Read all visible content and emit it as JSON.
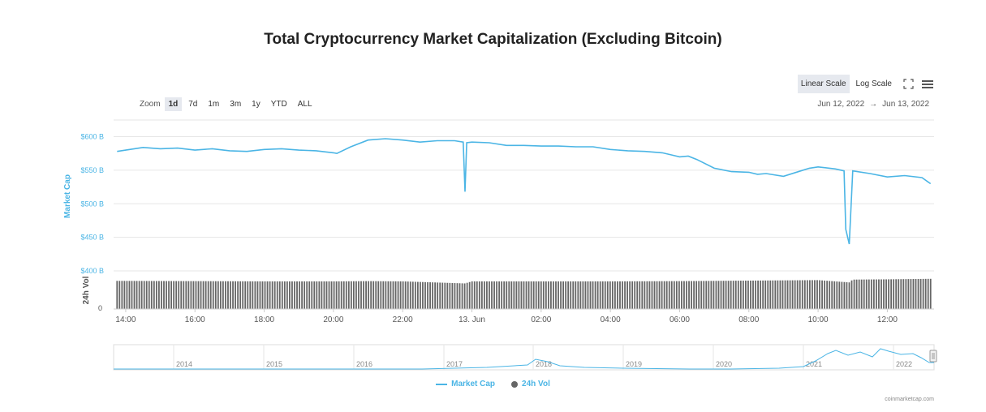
{
  "title": "Total Cryptocurrency Market Capitalization (Excluding Bitcoin)",
  "scale": {
    "linear_label": "Linear Scale",
    "log_label": "Log Scale",
    "active": "linear"
  },
  "zoom": {
    "label": "Zoom",
    "buttons": [
      "1d",
      "7d",
      "1m",
      "3m",
      "1y",
      "YTD",
      "ALL"
    ],
    "active": "1d"
  },
  "range": {
    "from": "Jun 12, 2022",
    "arrow": "→",
    "to": "Jun 13, 2022"
  },
  "legend": {
    "market_cap": "Market Cap",
    "volume": "24h Vol"
  },
  "credits": "coinmarketcap.com",
  "colors": {
    "market_cap": "#4bb5e5",
    "volume": "#666666",
    "axis_text": "#4bb5e5"
  },
  "icons": {
    "fullscreen": "fullscreen-icon",
    "menu": "hamburger-menu-icon"
  },
  "chart_data": {
    "type": "line",
    "title": "Total Cryptocurrency Market Capitalization (Excluding Bitcoin)",
    "xlabel": "",
    "ylabel": "Market Cap",
    "y2label": "24h Vol",
    "x_ticks": [
      "14:00",
      "16:00",
      "18:00",
      "20:00",
      "22:00",
      "13. Jun",
      "02:00",
      "04:00",
      "06:00",
      "08:00",
      "10:00",
      "12:00"
    ],
    "x_range_hours": [
      13.65,
      37.35
    ],
    "y_ticks": [
      "$600 B",
      "$550 B",
      "$500 B",
      "$450 B",
      "$400 B"
    ],
    "y_tick_values": [
      600,
      550,
      500,
      450,
      400
    ],
    "ylim": [
      400,
      620
    ],
    "vol_ticks": [
      "0"
    ],
    "grid": true,
    "legend_position": "bottom-center",
    "series": [
      {
        "name": "Market Cap",
        "unit": "billion USD",
        "x_hours": [
          13.75,
          14.0,
          14.5,
          15.0,
          15.5,
          16.0,
          16.5,
          17.0,
          17.5,
          18.0,
          18.5,
          19.0,
          19.5,
          20.0,
          20.1,
          20.5,
          21.0,
          21.5,
          22.0,
          22.5,
          23.0,
          23.5,
          23.75,
          23.8,
          23.85,
          24.0,
          24.5,
          25.0,
          25.5,
          26.0,
          26.5,
          27.0,
          27.5,
          28.0,
          28.5,
          29.0,
          29.5,
          29.75,
          30.0,
          30.25,
          30.5,
          31.0,
          31.5,
          32.0,
          32.25,
          32.5,
          33.0,
          33.5,
          33.75,
          34.0,
          34.5,
          34.75,
          34.8,
          34.9,
          35.0,
          35.5,
          36.0,
          36.5,
          37.0,
          37.25
        ],
        "values": [
          578,
          580,
          584,
          582,
          583,
          580,
          582,
          579,
          578,
          581,
          582,
          580,
          579,
          576,
          575,
          585,
          595,
          597,
          595,
          592,
          594,
          594,
          592,
          518,
          591,
          592,
          591,
          587,
          587,
          586,
          586,
          585,
          585,
          581,
          579,
          578,
          576,
          573,
          570,
          571,
          566,
          553,
          548,
          547,
          544,
          545,
          541,
          549,
          553,
          555,
          552,
          549,
          462,
          440,
          549,
          545,
          540,
          542,
          539,
          530
        ]
      },
      {
        "name": "24h Vol",
        "unit": "billion USD",
        "x_hours": [
          13.75,
          16.0,
          18.0,
          20.0,
          21.0,
          22.0,
          23.8,
          24.0,
          26.0,
          28.0,
          30.0,
          32.0,
          34.0,
          34.9,
          35.0,
          36.0,
          37.25
        ],
        "values": [
          110,
          109,
          108,
          108,
          109,
          108,
          100,
          108,
          108,
          108,
          109,
          111,
          113,
          104,
          115,
          116,
          118
        ]
      }
    ],
    "navigator": {
      "x_ticks": [
        "2014",
        "2015",
        "2016",
        "2017",
        "2018",
        "2019",
        "2020",
        "2021",
        "2022"
      ]
    }
  }
}
